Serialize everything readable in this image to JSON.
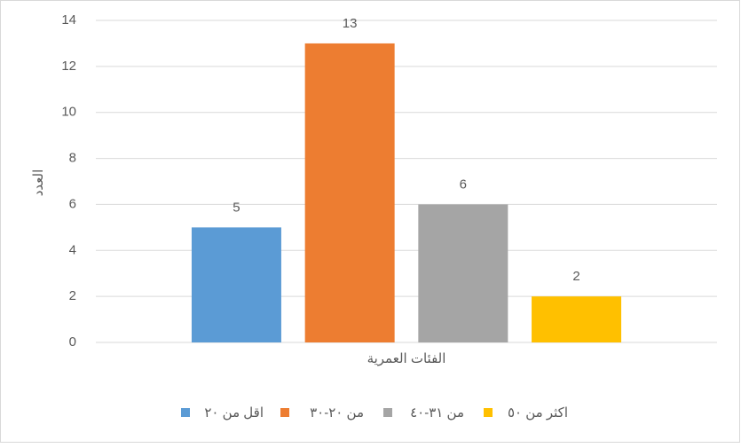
{
  "chart_data": {
    "type": "bar",
    "categories": [
      "الفئات العمرية"
    ],
    "y_label": "العدد",
    "series": [
      {
        "name": "اقل من ٢٠",
        "color": "#5b9bd5",
        "values": [
          5
        ]
      },
      {
        "name": "من ٢٠-٣٠",
        "color": "#ed7d31",
        "values": [
          13
        ]
      },
      {
        "name": "من ٣١-٤٠",
        "color": "#a5a5a5",
        "values": [
          6
        ]
      },
      {
        "name": "اكثر من ٥٠",
        "color": "#ffc000",
        "values": [
          2
        ]
      }
    ],
    "ylim": [
      0,
      14
    ],
    "yticks": [
      0,
      2,
      4,
      6,
      8,
      10,
      12,
      14
    ],
    "grid": true,
    "legend": "bottom"
  }
}
